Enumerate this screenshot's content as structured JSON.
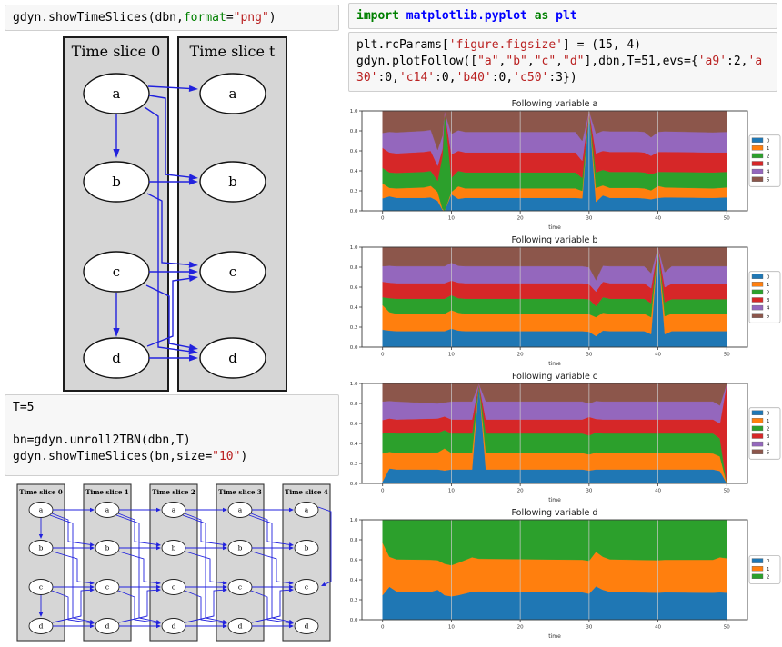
{
  "cells": {
    "cell_show_dbn": {
      "lines": [
        [
          {
            "t": "gdyn.showTimeSlices(dbn,"
          },
          {
            "t": "format",
            "c": "bu"
          },
          {
            "t": "="
          },
          {
            "t": "\"png\"",
            "c": "str"
          },
          {
            "t": ")"
          }
        ]
      ]
    },
    "cell_unroll": {
      "lines": [
        [
          {
            "t": "T=5"
          }
        ],
        [],
        [
          {
            "t": "bn=gdyn.unroll2TBN(dbn,T)"
          }
        ],
        [
          {
            "t": "gdyn.showTimeSlices(bn,size="
          },
          {
            "t": "\"10\"",
            "c": "str"
          },
          {
            "t": ")"
          }
        ]
      ]
    },
    "cell_import": {
      "lines": [
        [
          {
            "t": "import",
            "c": "kw"
          },
          {
            "t": " "
          },
          {
            "t": "matplotlib.pyplot",
            "c": "nn"
          },
          {
            "t": " "
          },
          {
            "t": "as",
            "c": "kw"
          },
          {
            "t": " "
          },
          {
            "t": "plt",
            "c": "nn"
          }
        ]
      ]
    },
    "cell_plotfollow": {
      "lines": [
        [
          {
            "t": "plt.rcParams["
          },
          {
            "t": "'figure.figsize'",
            "c": "str"
          },
          {
            "t": "] = (15, 4)"
          }
        ],
        [
          {
            "t": "gdyn.plotFollow(["
          },
          {
            "t": "\"a\"",
            "c": "str"
          },
          {
            "t": ","
          },
          {
            "t": "\"b\"",
            "c": "str"
          },
          {
            "t": ","
          },
          {
            "t": "\"c\"",
            "c": "str"
          },
          {
            "t": ","
          },
          {
            "t": "\"d\"",
            "c": "str"
          },
          {
            "t": "],dbn,T=51,evs={"
          },
          {
            "t": "'a9'",
            "c": "str"
          },
          {
            "t": ":2,"
          },
          {
            "t": "'a",
            "c": "str"
          }
        ],
        [
          {
            "t": "30'",
            "c": "str"
          },
          {
            "t": ":0,"
          },
          {
            "t": "'c14'",
            "c": "str"
          },
          {
            "t": ":0,"
          },
          {
            "t": "'b40'",
            "c": "str"
          },
          {
            "t": ":0,"
          },
          {
            "t": "'c50'",
            "c": "str"
          },
          {
            "t": ":3})"
          }
        ]
      ]
    }
  },
  "diagrams": {
    "colors": {
      "panel_fill": "#d6d6d6",
      "panel_border": "#1c1c1c",
      "node_fill": "#ffffff",
      "node_border": "#111111",
      "edge": "#2222dd"
    },
    "two_tbn": {
      "panels": [
        {
          "title": "Time slice 0"
        },
        {
          "title": "Time slice t"
        }
      ],
      "nodes": [
        "a",
        "b",
        "c",
        "d"
      ],
      "edges": [
        [
          "a0",
          "b0"
        ],
        [
          "c0",
          "d0"
        ],
        [
          "a0",
          "at"
        ],
        [
          "a0",
          "bt"
        ],
        [
          "a0",
          "dt"
        ],
        [
          "b0",
          "bt"
        ],
        [
          "b0",
          "ct"
        ],
        [
          "c0",
          "ct"
        ],
        [
          "c0",
          "dt"
        ],
        [
          "d0",
          "ct"
        ],
        [
          "d0",
          "dt"
        ]
      ]
    },
    "unrolled": {
      "panel_titles": [
        "Time slice 0",
        "Time slice 1",
        "Time slice 2",
        "Time slice 3",
        "Time slice 4"
      ],
      "nodes": [
        "a",
        "b",
        "c",
        "d"
      ],
      "slice0_edges": [
        [
          "a",
          "b"
        ],
        [
          "c",
          "d"
        ]
      ],
      "transition_edges": [
        [
          "a",
          "a"
        ],
        [
          "a",
          "b"
        ],
        [
          "a",
          "d"
        ],
        [
          "b",
          "b"
        ],
        [
          "b",
          "c"
        ],
        [
          "c",
          "c"
        ],
        [
          "c",
          "d"
        ],
        [
          "d",
          "c"
        ],
        [
          "d",
          "d"
        ]
      ],
      "extra_edges": [
        [
          "a4",
          "c4"
        ]
      ]
    }
  },
  "chart_data": [
    {
      "type": "area",
      "title": "Following variable a",
      "xlabel": "time",
      "xticks": [
        0,
        10,
        20,
        30,
        40,
        50
      ],
      "yticks": [
        "0.0",
        "0.2",
        "0.4",
        "0.6",
        "0.8",
        "1.0"
      ],
      "xlim": [
        -3,
        53
      ],
      "ylim": [
        0,
        1
      ],
      "grid_x": [
        10,
        20,
        30,
        40
      ],
      "legend_position": "right",
      "x": [
        0,
        1,
        2,
        6,
        7,
        8,
        8.7,
        9,
        10,
        11,
        12,
        27,
        28,
        29,
        30,
        31,
        32,
        33,
        37,
        38,
        39,
        40,
        41,
        48,
        50
      ],
      "series": [
        {
          "name": "0",
          "color": "#1f77b4",
          "tops": [
            0.125,
            0.145,
            0.13,
            0.13,
            0.135,
            0.1,
            0.01,
            0.0,
            0.165,
            0.12,
            0.13,
            0.13,
            0.13,
            0.125,
            1.0,
            0.09,
            0.155,
            0.13,
            0.13,
            0.125,
            0.115,
            0.13,
            0.135,
            0.13,
            0.135
          ]
        },
        {
          "name": "1",
          "color": "#ff7f0e",
          "tops": [
            0.275,
            0.23,
            0.225,
            0.235,
            0.25,
            0.19,
            0.02,
            0.0,
            0.19,
            0.245,
            0.225,
            0.225,
            0.225,
            0.2,
            1.0,
            0.23,
            0.255,
            0.23,
            0.23,
            0.225,
            0.205,
            0.25,
            0.235,
            0.225,
            0.235
          ]
        },
        {
          "name": "2",
          "color": "#2ca02c",
          "tops": [
            0.43,
            0.385,
            0.38,
            0.39,
            0.4,
            0.3,
            0.55,
            1.0,
            0.33,
            0.4,
            0.385,
            0.385,
            0.385,
            0.33,
            1.0,
            0.385,
            0.41,
            0.39,
            0.39,
            0.385,
            0.365,
            0.39,
            0.39,
            0.385,
            0.39
          ]
        },
        {
          "name": "3",
          "color": "#d62728",
          "tops": [
            0.63,
            0.585,
            0.575,
            0.59,
            0.6,
            0.45,
            0.62,
            1.0,
            0.565,
            0.6,
            0.585,
            0.585,
            0.585,
            0.5,
            1.0,
            0.575,
            0.6,
            0.59,
            0.59,
            0.585,
            0.55,
            0.59,
            0.59,
            0.585,
            0.585
          ]
        },
        {
          "name": "4",
          "color": "#9467bd",
          "tops": [
            0.78,
            0.79,
            0.785,
            0.8,
            0.81,
            0.61,
            0.75,
            1.0,
            0.77,
            0.805,
            0.79,
            0.79,
            0.79,
            0.7,
            1.0,
            0.775,
            0.8,
            0.795,
            0.795,
            0.79,
            0.735,
            0.79,
            0.795,
            0.785,
            0.79
          ]
        },
        {
          "name": "5",
          "color": "#8c564b",
          "tops": [
            1,
            1,
            1,
            1,
            1,
            1,
            1,
            1,
            1,
            1,
            1,
            1,
            1,
            1,
            1,
            1,
            1,
            1,
            1,
            1,
            1,
            1,
            1,
            1,
            1
          ]
        }
      ]
    },
    {
      "type": "area",
      "title": "Following variable b",
      "xlabel": "time",
      "xticks": [
        0,
        10,
        20,
        30,
        40,
        50
      ],
      "yticks": [
        "0.0",
        "0.2",
        "0.4",
        "0.6",
        "0.8",
        "1.0"
      ],
      "xlim": [
        -3,
        53
      ],
      "ylim": [
        0,
        1
      ],
      "grid_x": [
        10,
        20,
        30,
        40
      ],
      "legend_position": "right",
      "x": [
        0,
        1,
        2,
        9,
        10,
        11,
        12,
        29,
        30,
        31,
        32,
        33,
        38,
        39,
        40,
        41,
        42,
        50
      ],
      "series": [
        {
          "name": "0",
          "color": "#1f77b4",
          "tops": [
            0.175,
            0.165,
            0.16,
            0.16,
            0.185,
            0.165,
            0.16,
            0.16,
            0.155,
            0.11,
            0.165,
            0.16,
            0.16,
            0.13,
            1.0,
            0.13,
            0.16,
            0.16
          ]
        },
        {
          "name": "1",
          "color": "#ff7f0e",
          "tops": [
            0.42,
            0.35,
            0.335,
            0.335,
            0.37,
            0.345,
            0.335,
            0.335,
            0.33,
            0.3,
            0.345,
            0.335,
            0.335,
            0.3,
            1.0,
            0.31,
            0.335,
            0.335
          ]
        },
        {
          "name": "2",
          "color": "#2ca02c",
          "tops": [
            0.5,
            0.49,
            0.485,
            0.485,
            0.52,
            0.49,
            0.485,
            0.485,
            0.48,
            0.41,
            0.5,
            0.485,
            0.485,
            0.44,
            1.0,
            0.45,
            0.48,
            0.48
          ]
        },
        {
          "name": "3",
          "color": "#d62728",
          "tops": [
            0.655,
            0.645,
            0.64,
            0.64,
            0.665,
            0.645,
            0.64,
            0.64,
            0.63,
            0.555,
            0.655,
            0.64,
            0.64,
            0.59,
            1.0,
            0.6,
            0.635,
            0.635
          ]
        },
        {
          "name": "4",
          "color": "#9467bd",
          "tops": [
            0.81,
            0.815,
            0.81,
            0.81,
            0.845,
            0.815,
            0.81,
            0.81,
            0.8,
            0.67,
            0.815,
            0.81,
            0.81,
            0.74,
            1.0,
            0.75,
            0.81,
            0.81
          ]
        },
        {
          "name": "5",
          "color": "#8c564b",
          "tops": [
            1,
            1,
            1,
            1,
            1,
            1,
            1,
            1,
            1,
            1,
            1,
            1,
            1,
            1,
            1,
            1,
            1,
            1
          ]
        }
      ]
    },
    {
      "type": "area",
      "title": "Following variable c",
      "xlabel": "time",
      "xticks": [
        0,
        10,
        20,
        30,
        40,
        50
      ],
      "yticks": [
        "0.0",
        "0.2",
        "0.4",
        "0.6",
        "0.8",
        "1.0"
      ],
      "xlim": [
        -3,
        53
      ],
      "ylim": [
        0,
        1
      ],
      "grid_x": [
        10,
        20,
        30,
        40
      ],
      "legend_position": "right",
      "x": [
        0,
        1,
        2,
        8,
        9,
        10,
        13,
        14,
        15,
        16,
        29,
        30,
        31,
        32,
        47,
        48,
        49,
        50
      ],
      "series": [
        {
          "name": "0",
          "color": "#1f77b4",
          "tops": [
            0.02,
            0.15,
            0.14,
            0.14,
            0.13,
            0.14,
            0.14,
            1.0,
            0.14,
            0.14,
            0.14,
            0.13,
            0.14,
            0.14,
            0.14,
            0.14,
            0.125,
            0.0
          ]
        },
        {
          "name": "1",
          "color": "#ff7f0e",
          "tops": [
            0.3,
            0.315,
            0.305,
            0.31,
            0.35,
            0.305,
            0.305,
            1.0,
            0.305,
            0.305,
            0.305,
            0.29,
            0.31,
            0.305,
            0.305,
            0.3,
            0.27,
            0.0
          ]
        },
        {
          "name": "2",
          "color": "#2ca02c",
          "tops": [
            0.5,
            0.51,
            0.5,
            0.505,
            0.535,
            0.5,
            0.5,
            1.0,
            0.5,
            0.5,
            0.5,
            0.48,
            0.51,
            0.5,
            0.5,
            0.5,
            0.45,
            0.0
          ]
        },
        {
          "name": "3",
          "color": "#d62728",
          "tops": [
            0.635,
            0.65,
            0.64,
            0.65,
            0.67,
            0.64,
            0.64,
            1.0,
            0.64,
            0.64,
            0.64,
            0.665,
            0.645,
            0.64,
            0.64,
            0.64,
            0.6,
            1.0
          ]
        },
        {
          "name": "4",
          "color": "#9467bd",
          "tops": [
            0.82,
            0.825,
            0.82,
            0.8,
            0.81,
            0.82,
            0.82,
            1.0,
            0.82,
            0.82,
            0.82,
            0.8,
            0.825,
            0.82,
            0.82,
            0.82,
            0.78,
            1.0
          ]
        },
        {
          "name": "5",
          "color": "#8c564b",
          "tops": [
            1,
            1,
            1,
            1,
            1,
            1,
            1,
            1,
            1,
            1,
            1,
            1,
            1,
            1,
            1,
            1,
            1,
            1
          ]
        }
      ]
    },
    {
      "type": "area",
      "title": "Following variable d",
      "xlabel": "time",
      "xticks": [
        0,
        10,
        20,
        30,
        40,
        50
      ],
      "yticks": [
        "0.0",
        "0.2",
        "0.4",
        "0.6",
        "0.8",
        "1.0"
      ],
      "xlim": [
        -3,
        53
      ],
      "ylim": [
        0,
        1
      ],
      "grid_x": [
        10,
        20,
        30,
        40
      ],
      "legend_position": "right",
      "x": [
        0,
        1,
        2,
        7,
        8,
        9,
        10,
        11,
        13,
        14,
        29,
        30,
        31,
        32,
        33,
        40,
        41,
        48,
        49,
        50
      ],
      "series": [
        {
          "name": "0",
          "color": "#1f77b4",
          "tops": [
            0.245,
            0.33,
            0.285,
            0.28,
            0.3,
            0.245,
            0.235,
            0.245,
            0.28,
            0.285,
            0.275,
            0.26,
            0.335,
            0.3,
            0.28,
            0.27,
            0.275,
            0.27,
            0.275,
            0.27
          ]
        },
        {
          "name": "1",
          "color": "#ff7f0e",
          "tops": [
            0.77,
            0.63,
            0.605,
            0.6,
            0.595,
            0.56,
            0.545,
            0.57,
            0.625,
            0.61,
            0.6,
            0.59,
            0.68,
            0.63,
            0.605,
            0.595,
            0.6,
            0.6,
            0.625,
            0.615
          ]
        },
        {
          "name": "2",
          "color": "#2ca02c",
          "tops": [
            1,
            1,
            1,
            1,
            1,
            1,
            1,
            1,
            1,
            1,
            1,
            1,
            1,
            1,
            1,
            1,
            1,
            1,
            1,
            1
          ]
        }
      ]
    }
  ]
}
